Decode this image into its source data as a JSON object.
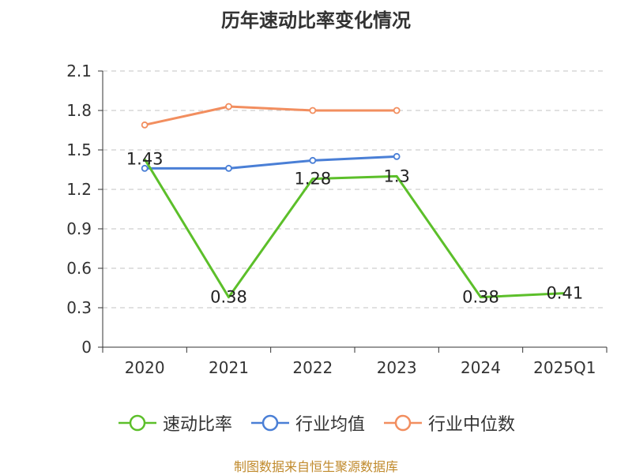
{
  "chart_data": {
    "type": "line",
    "title": "历年速动比率变化情况",
    "categories": [
      "2020",
      "2021",
      "2022",
      "2023",
      "2024",
      "2025Q1"
    ],
    "yticks": [
      "0",
      "0.3",
      "0.6",
      "0.9",
      "1.2",
      "1.5",
      "1.8",
      "2.1"
    ],
    "ylim": [
      0,
      2.1
    ],
    "grid": true,
    "legend_position": "bottom",
    "series": [
      {
        "name": "速动比率",
        "color": "#5cbf2a",
        "values": [
          1.43,
          0.38,
          1.28,
          1.3,
          0.38,
          0.41
        ],
        "labels": [
          "1.43",
          "0.38",
          "1.28",
          "1.3",
          "0.38",
          "0.41"
        ],
        "show_markers": false
      },
      {
        "name": "行业均值",
        "color": "#4a7fd6",
        "values": [
          1.36,
          1.36,
          1.42,
          1.45,
          null,
          null
        ],
        "show_markers": true
      },
      {
        "name": "行业中位数",
        "color": "#f28e5f",
        "values": [
          1.69,
          1.83,
          1.8,
          1.8,
          null,
          null
        ],
        "show_markers": true
      }
    ]
  },
  "source": "制图数据来自恒生聚源数据库"
}
